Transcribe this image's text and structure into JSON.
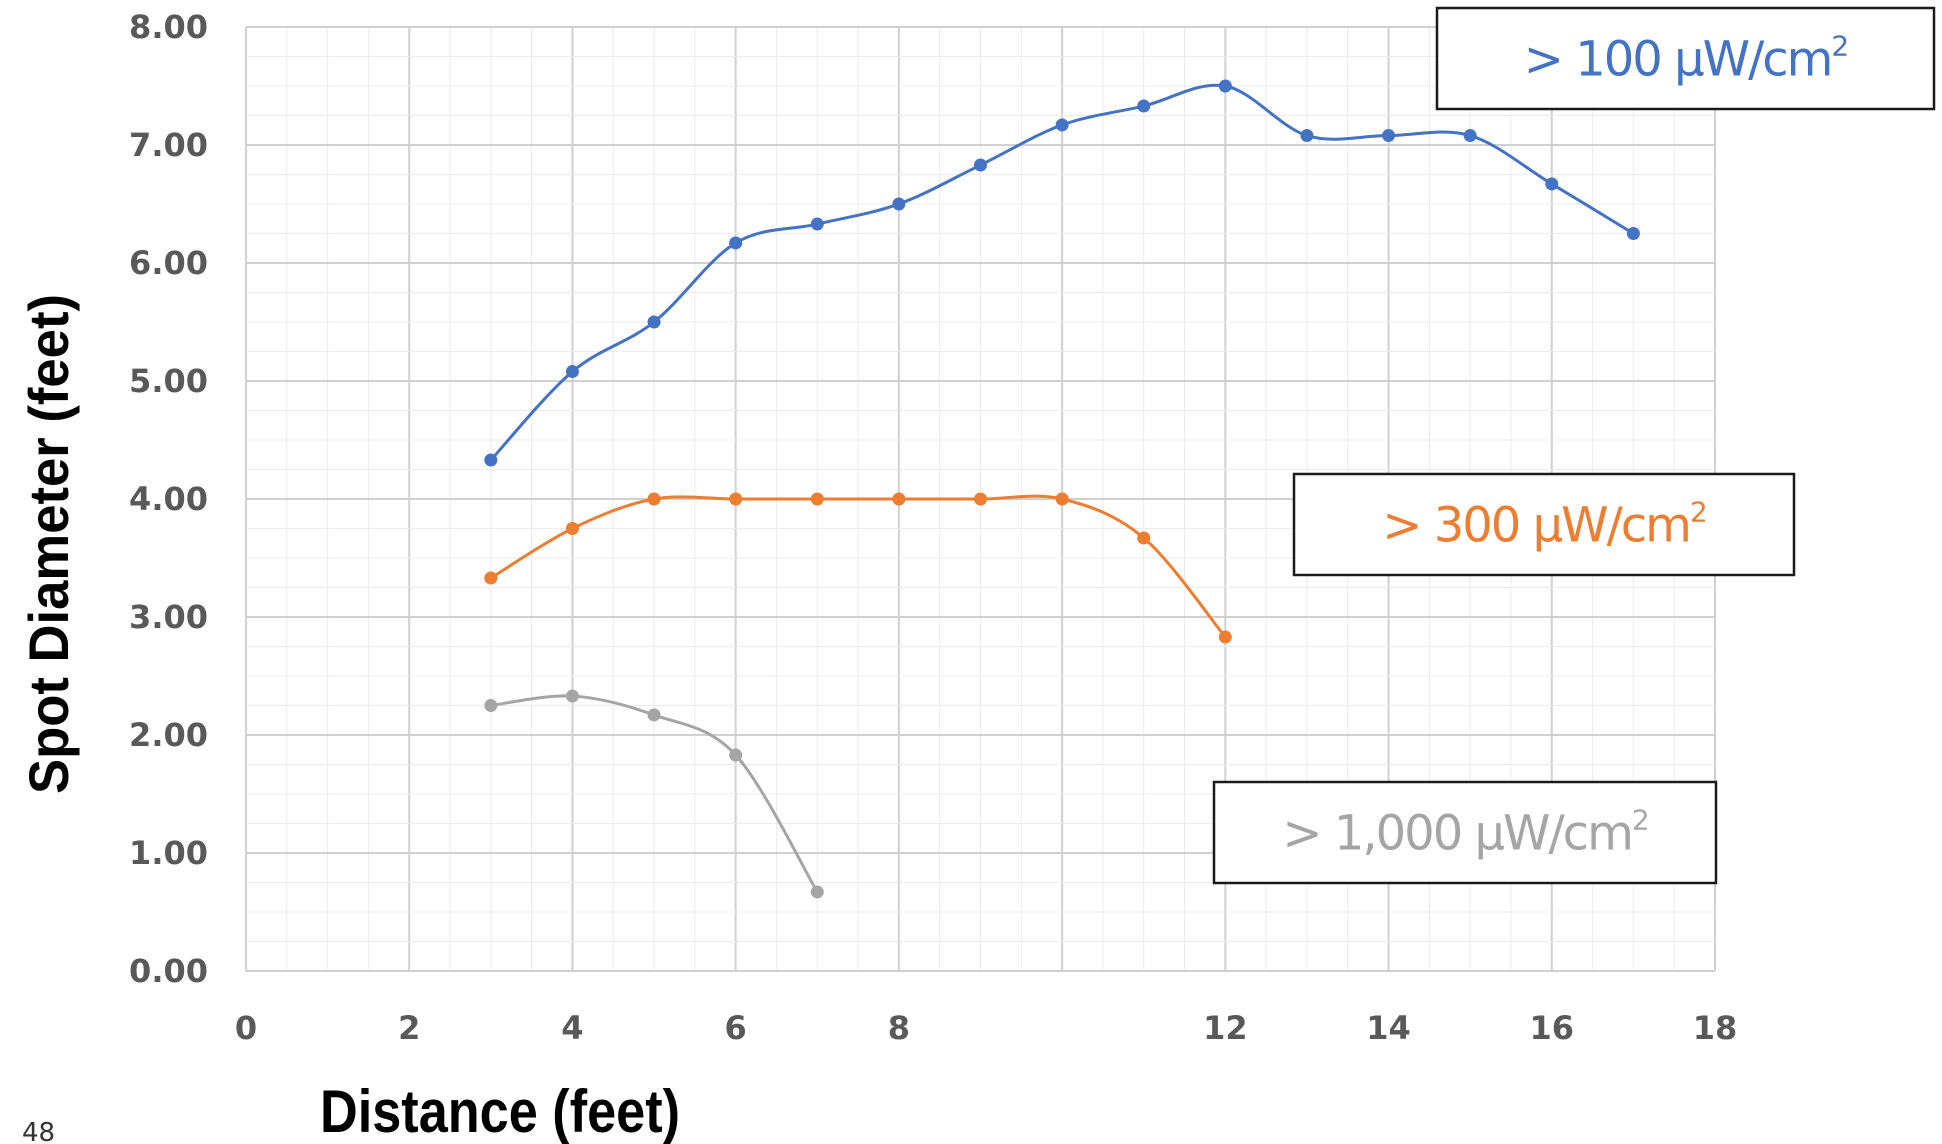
{
  "chart_data": {
    "type": "line",
    "xlabel": "Distance (feet)",
    "ylabel": "Spot Diameter (feet)",
    "xlim": [
      0,
      18
    ],
    "ylim": [
      0,
      8
    ],
    "xticks": [
      0,
      2,
      4,
      6,
      8,
      10,
      12,
      14,
      16,
      18
    ],
    "xtick_labels": [
      "0",
      "2",
      "4",
      "6",
      "8",
      "",
      "12",
      "14",
      "16",
      "18"
    ],
    "yticks": [
      0,
      1,
      2,
      3,
      4,
      5,
      6,
      7,
      8
    ],
    "ytick_labels": [
      "0.00",
      "1.00",
      "2.00",
      "3.00",
      "4.00",
      "5.00",
      "6.00",
      "7.00",
      "8.00"
    ],
    "grid": true,
    "series": [
      {
        "label_prefix": ">",
        "label_value": "100",
        "label_unit": "μW/cm",
        "label_sup": "2",
        "color": "#4472C4",
        "x": [
          3,
          4,
          5,
          6,
          7,
          8,
          9,
          10,
          11,
          12,
          13,
          14,
          15,
          16,
          17
        ],
        "values": [
          4.33,
          5.08,
          5.5,
          6.17,
          6.33,
          6.5,
          6.83,
          7.17,
          7.33,
          7.5,
          7.08,
          7.08,
          7.08,
          6.67,
          6.25
        ]
      },
      {
        "label_prefix": ">",
        "label_value": "300",
        "label_unit": "μW/cm",
        "label_sup": "2",
        "color": "#ED7D31",
        "x": [
          3,
          4,
          5,
          6,
          7,
          8,
          9,
          10,
          11,
          12
        ],
        "values": [
          3.33,
          3.75,
          4.0,
          4.0,
          4.0,
          4.0,
          4.0,
          4.0,
          3.67,
          2.83
        ]
      },
      {
        "label_prefix": ">",
        "label_value": "1,000",
        "label_unit": "μW/cm",
        "label_sup": "2",
        "color": "#A5A5A5",
        "x": [
          3,
          4,
          5,
          6,
          7
        ],
        "values": [
          2.25,
          2.33,
          2.17,
          1.83,
          0.67
        ]
      }
    ]
  },
  "page_number": "48"
}
